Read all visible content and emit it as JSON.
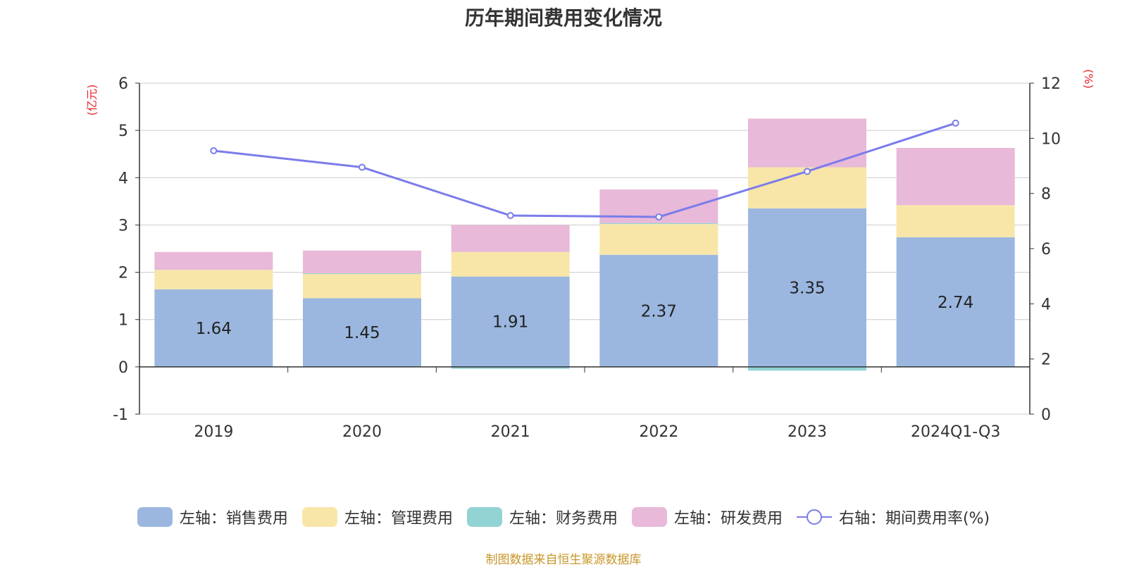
{
  "chart_data": {
    "type": "bar",
    "title": "历年期间费用变化情况",
    "categories": [
      "2019",
      "2020",
      "2021",
      "2022",
      "2023",
      "2024Q1-Q3"
    ],
    "left_axis": {
      "unit_label": "(亿元)",
      "ylim": [
        -1,
        6
      ],
      "ticks": [
        -1,
        0,
        1,
        2,
        3,
        4,
        5,
        6
      ]
    },
    "right_axis": {
      "unit_label": "(%)",
      "ylim": [
        0,
        12
      ],
      "ticks": [
        0,
        2,
        4,
        6,
        8,
        10,
        12
      ]
    },
    "stacked": true,
    "grid": true,
    "legend_position": "bottom",
    "series": [
      {
        "name": "左轴：销售费用",
        "axis": "left",
        "kind": "bar",
        "color": "#9BB7E0",
        "values": [
          1.64,
          1.45,
          1.91,
          2.37,
          3.35,
          2.74
        ],
        "show_labels": true
      },
      {
        "name": "左轴：管理费用",
        "axis": "left",
        "kind": "bar",
        "color": "#F8E6A8",
        "values": [
          0.41,
          0.52,
          0.52,
          0.65,
          0.87,
          0.68
        ]
      },
      {
        "name": "左轴：财务费用",
        "axis": "left",
        "kind": "bar",
        "color": "#92D3D4",
        "values": [
          0.0,
          0.01,
          -0.04,
          0.02,
          -0.08,
          0.0
        ]
      },
      {
        "name": "左轴：研发费用",
        "axis": "left",
        "kind": "bar",
        "color": "#E8B9D8",
        "values": [
          0.38,
          0.48,
          0.57,
          0.71,
          1.03,
          1.21
        ]
      },
      {
        "name": "右轴：期间费用率(%)",
        "axis": "right",
        "kind": "line",
        "color": "#7B7CEB",
        "values": [
          9.55,
          8.95,
          7.2,
          7.15,
          8.8,
          10.55
        ]
      }
    ]
  },
  "footer": {
    "source": "制图数据来自恒生聚源数据库"
  }
}
